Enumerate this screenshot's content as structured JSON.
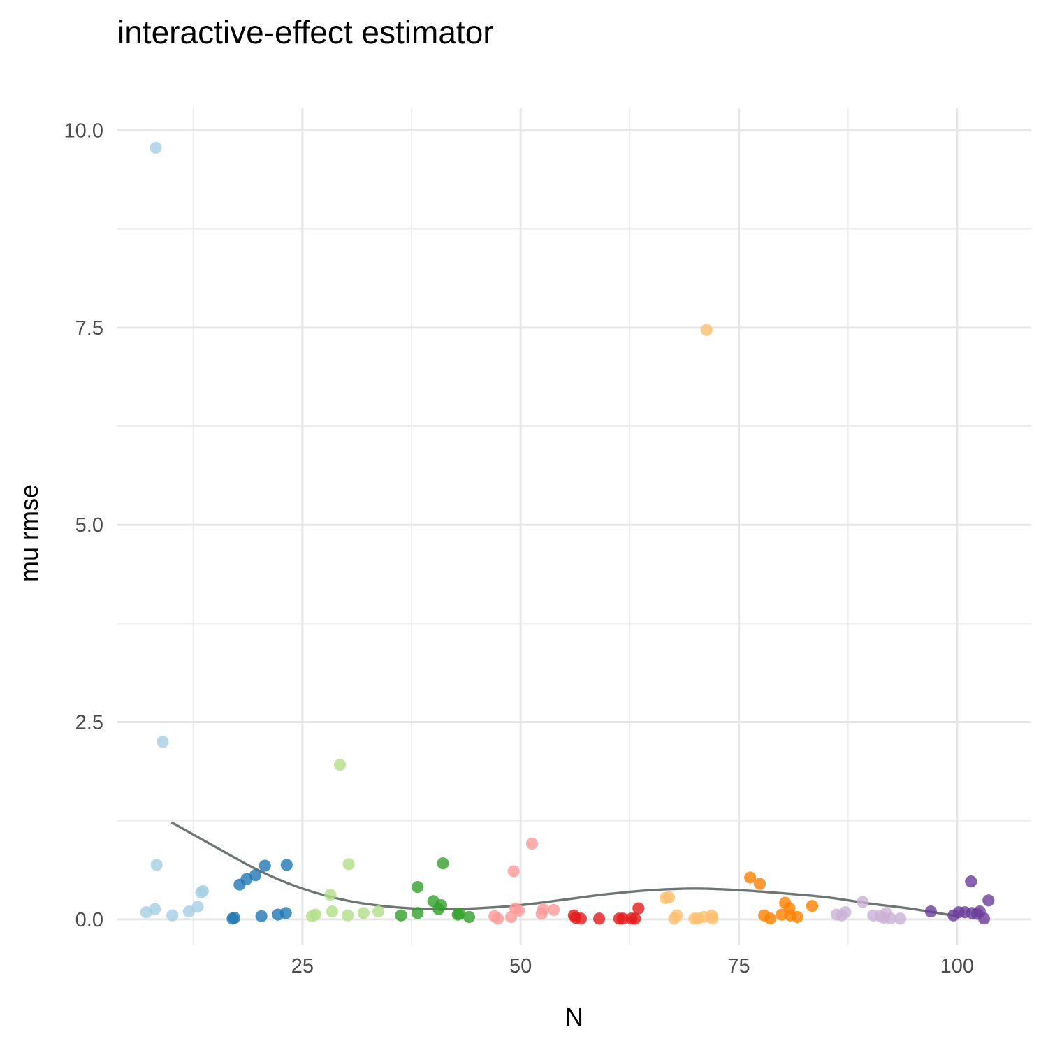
{
  "chart_data": {
    "type": "scatter",
    "title": "interactive-effect estimator",
    "xlabel": "N",
    "ylabel": "mu rmse",
    "xlim": [
      3.8,
      108.5
    ],
    "ylim": [
      -0.32,
      10.28
    ],
    "x_ticks": [
      25,
      50,
      75,
      100
    ],
    "x_tick_labels": [
      "25",
      "50",
      "75",
      "100"
    ],
    "x_minor_ticks": [
      12.5,
      37.5,
      62.5,
      87.5
    ],
    "y_ticks": [
      0,
      2.5,
      5,
      7.5,
      10
    ],
    "y_tick_labels": [
      "0.0",
      "2.5",
      "5.0",
      "7.5",
      "10.0"
    ],
    "y_minor_ticks": [
      1.25,
      3.75,
      6.25,
      8.75
    ],
    "grid": true,
    "legend": "none",
    "point_opacity": 0.8,
    "series": [
      {
        "color": "#a6cee3",
        "points": [
          [
            8.2,
            9.78
          ],
          [
            9.0,
            2.25
          ],
          [
            8.3,
            0.69
          ],
          [
            7.1,
            0.09
          ],
          [
            8.1,
            0.13
          ],
          [
            10.1,
            0.05
          ],
          [
            12.0,
            0.1
          ],
          [
            13.0,
            0.16
          ],
          [
            13.4,
            0.34
          ],
          [
            13.6,
            0.36
          ]
        ]
      },
      {
        "color": "#1f78b4",
        "points": [
          [
            17.0,
            0.01
          ],
          [
            17.2,
            0.02
          ],
          [
            17.8,
            0.44
          ],
          [
            18.6,
            0.51
          ],
          [
            19.6,
            0.56
          ],
          [
            20.3,
            0.04
          ],
          [
            20.7,
            0.68
          ],
          [
            22.2,
            0.06
          ],
          [
            23.1,
            0.08
          ],
          [
            23.2,
            0.69
          ]
        ]
      },
      {
        "color": "#b2df8a",
        "points": [
          [
            26.1,
            0.04
          ],
          [
            26.5,
            0.06
          ],
          [
            28.2,
            0.31
          ],
          [
            28.4,
            0.1
          ],
          [
            29.3,
            1.96
          ],
          [
            30.2,
            0.05
          ],
          [
            30.3,
            0.7
          ],
          [
            32.0,
            0.08
          ],
          [
            33.7,
            0.1
          ]
        ]
      },
      {
        "color": "#33a02c",
        "points": [
          [
            36.3,
            0.05
          ],
          [
            38.2,
            0.08
          ],
          [
            38.2,
            0.41
          ],
          [
            40.0,
            0.23
          ],
          [
            40.6,
            0.13
          ],
          [
            40.9,
            0.18
          ],
          [
            41.1,
            0.71
          ],
          [
            42.8,
            0.06
          ],
          [
            43.0,
            0.07
          ],
          [
            44.1,
            0.03
          ]
        ]
      },
      {
        "color": "#fb9a99",
        "points": [
          [
            47.0,
            0.04
          ],
          [
            47.4,
            0.01
          ],
          [
            48.9,
            0.03
          ],
          [
            49.2,
            0.61
          ],
          [
            49.4,
            0.14
          ],
          [
            49.8,
            0.11
          ],
          [
            51.3,
            0.96
          ],
          [
            52.4,
            0.07
          ],
          [
            52.6,
            0.13
          ],
          [
            53.8,
            0.12
          ]
        ]
      },
      {
        "color": "#e31a1c",
        "points": [
          [
            56.1,
            0.05
          ],
          [
            56.3,
            0.02
          ],
          [
            56.9,
            0.01
          ],
          [
            59.0,
            0.01
          ],
          [
            61.3,
            0.01
          ],
          [
            61.7,
            0.01
          ],
          [
            62.7,
            0.01
          ],
          [
            63.1,
            0.01
          ],
          [
            63.5,
            0.14
          ]
        ]
      },
      {
        "color": "#fdbf6f",
        "points": [
          [
            66.6,
            0.27
          ],
          [
            67.0,
            0.28
          ],
          [
            67.6,
            0.01
          ],
          [
            67.9,
            0.05
          ],
          [
            69.9,
            0.01
          ],
          [
            70.3,
            0.01
          ],
          [
            71.0,
            0.03
          ],
          [
            71.3,
            7.47
          ],
          [
            71.9,
            0.05
          ],
          [
            72.0,
            0.01
          ]
        ]
      },
      {
        "color": "#ff7f00",
        "points": [
          [
            76.3,
            0.53
          ],
          [
            77.4,
            0.45
          ],
          [
            77.9,
            0.05
          ],
          [
            78.6,
            0.01
          ],
          [
            79.9,
            0.06
          ],
          [
            80.3,
            0.21
          ],
          [
            80.8,
            0.14
          ],
          [
            80.9,
            0.05
          ],
          [
            81.7,
            0.03
          ],
          [
            83.4,
            0.17
          ]
        ]
      },
      {
        "color": "#cab2d6",
        "points": [
          [
            86.2,
            0.06
          ],
          [
            86.8,
            0.05
          ],
          [
            87.2,
            0.09
          ],
          [
            89.2,
            0.22
          ],
          [
            90.4,
            0.05
          ],
          [
            91.2,
            0.04
          ],
          [
            91.6,
            0.02
          ],
          [
            91.9,
            0.08
          ],
          [
            92.4,
            0.01
          ],
          [
            93.5,
            0.01
          ]
        ]
      },
      {
        "color": "#6a3d9a",
        "points": [
          [
            97.0,
            0.1
          ],
          [
            99.6,
            0.05
          ],
          [
            100.2,
            0.09
          ],
          [
            100.9,
            0.09
          ],
          [
            101.6,
            0.48
          ],
          [
            101.7,
            0.08
          ],
          [
            102.3,
            0.07
          ],
          [
            102.6,
            0.1
          ],
          [
            103.1,
            0.01
          ],
          [
            103.6,
            0.24
          ]
        ]
      }
    ],
    "smooth": {
      "color": "#6e7673",
      "points": [
        [
          10,
          1.23
        ],
        [
          15,
          0.92
        ],
        [
          20,
          0.62
        ],
        [
          25,
          0.39
        ],
        [
          30,
          0.24
        ],
        [
          35,
          0.16
        ],
        [
          40,
          0.13
        ],
        [
          45,
          0.14
        ],
        [
          50,
          0.18
        ],
        [
          55,
          0.25
        ],
        [
          60,
          0.32
        ],
        [
          65,
          0.37
        ],
        [
          70,
          0.39
        ],
        [
          75,
          0.37
        ],
        [
          80,
          0.33
        ],
        [
          85,
          0.28
        ],
        [
          90,
          0.2
        ],
        [
          95,
          0.13
        ],
        [
          100,
          0.04
        ]
      ]
    }
  }
}
